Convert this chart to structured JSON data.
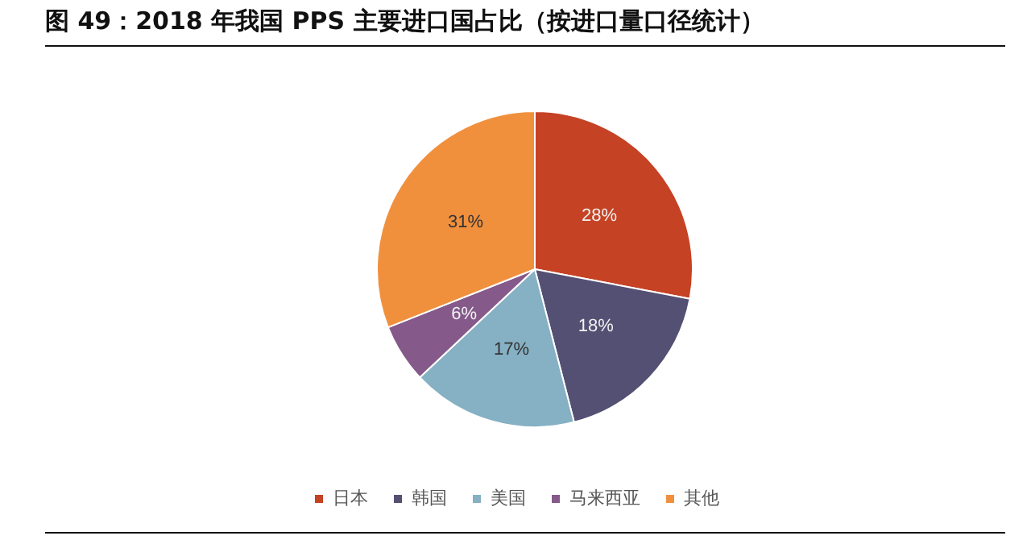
{
  "chart_data": {
    "type": "pie",
    "title": "图 49：2018 年我国 PPS 主要进口国占比（按进口量口径统计）",
    "categories": [
      "日本",
      "韩国",
      "美国",
      "马来西亚",
      "其他"
    ],
    "values": [
      28,
      18,
      17,
      6,
      31
    ],
    "value_labels": [
      "28%",
      "18%",
      "17%",
      "6%",
      "31%"
    ],
    "colors": [
      "#c64224",
      "#545073",
      "#86b0c3",
      "#855a8b",
      "#f0903d"
    ],
    "legend": "bottom"
  }
}
